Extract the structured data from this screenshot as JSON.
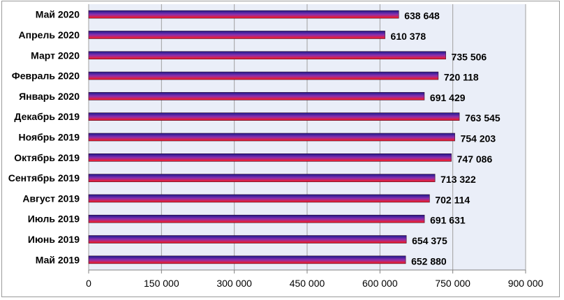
{
  "chart_data": {
    "type": "bar",
    "orientation": "horizontal",
    "categories": [
      "Май 2019",
      "Июнь 2019",
      "Июль 2019",
      "Август 2019",
      "Сентябрь 2019",
      "Октябрь 2019",
      "Ноябрь 2019",
      "Декабрь 2019",
      "Январь 2020",
      "Февраль 2020",
      "Март 2020",
      "Апрель 2020",
      "Май 2020"
    ],
    "values": [
      652880,
      654375,
      691631,
      702114,
      713322,
      747086,
      754203,
      763545,
      691429,
      720118,
      735506,
      610378,
      638648
    ],
    "value_labels": [
      "652 880",
      "654 375",
      "691 631",
      "702 114",
      "713 322",
      "747 086",
      "754 203",
      "763 545",
      "691 429",
      "720 118",
      "735 506",
      "610 378",
      "638 648"
    ],
    "x_ticks": [
      0,
      150000,
      300000,
      450000,
      600000,
      750000,
      900000
    ],
    "x_tick_labels": [
      "0",
      "150 000",
      "300 000",
      "450 000",
      "600 000",
      "750 000",
      "900 000"
    ],
    "xlim": [
      0,
      900000
    ],
    "grid": true,
    "legend": "none",
    "colors": {
      "plot_background": "#eaeef8",
      "grid": "#a0a0a0",
      "bar_top": "#1a1a8c",
      "bar_mid": "#8a2fb0",
      "bar_bottom": "#ff1a1a",
      "bar_outline": "#3a0a2a"
    }
  }
}
